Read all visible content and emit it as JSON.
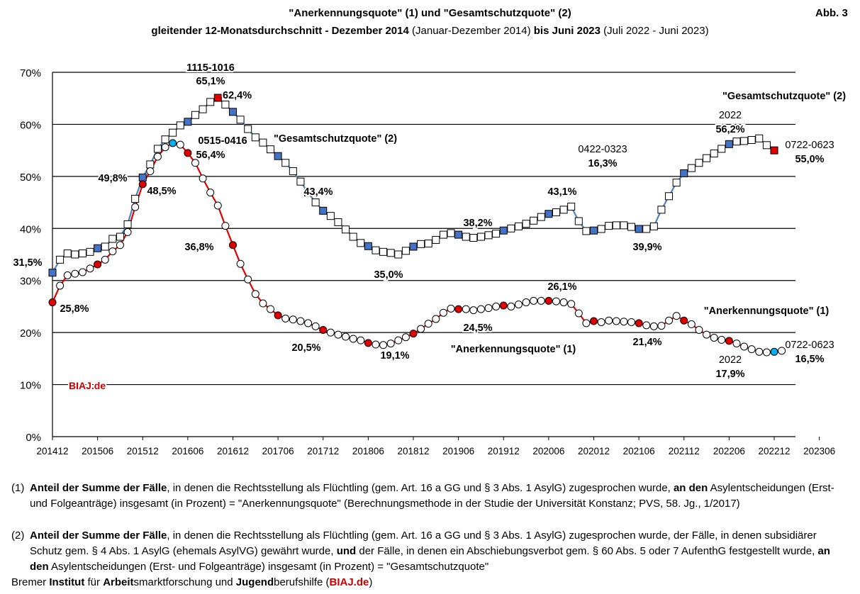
{
  "header": {
    "title_line1": "\"Anerkennungsquote\" (1) und \"Gesamtschutzquote\" (2)",
    "title_line2": {
      "a": "gleitender 12-Monatsdurchschnitt - Dezember 2014",
      "b": " (Januar-Dezember 2014) ",
      "c": "bis Juni 2023",
      "d": " (Juli 2022 - Juni 2023)"
    },
    "figure_label": "Abb. 3"
  },
  "chart_data": {
    "type": "line",
    "y_ticks": [
      "0%",
      "10%",
      "20%",
      "30%",
      "40%",
      "50%",
      "60%",
      "70%"
    ],
    "ylim": [
      0,
      70
    ],
    "x_ticks": [
      "201412",
      "201506",
      "201512",
      "201606",
      "201612",
      "201706",
      "201712",
      "201806",
      "201812",
      "201906",
      "201912",
      "202006",
      "202012",
      "202106",
      "202112",
      "202206",
      "202212",
      "202306"
    ],
    "series": [
      {
        "name": "\"Gesamtschutzquote\" (2)",
        "color": "#4f81bd",
        "highlight_color": "#4472c4",
        "end_color": "#e00000",
        "values": [
          31.5,
          34.0,
          35.2,
          35.0,
          35.2,
          35.5,
          36.2,
          36.5,
          38.0,
          38.4,
          40.8,
          45.7,
          49.8,
          52.3,
          55.3,
          57.1,
          58.4,
          59.8,
          60.5,
          61.8,
          62.9,
          64.3,
          65.1,
          63.8,
          62.4,
          60.9,
          59.1,
          57.5,
          56.5,
          55.2,
          53.9,
          52.6,
          51.0,
          49.0,
          46.9,
          45.0,
          43.4,
          42.4,
          41.2,
          39.8,
          38.4,
          37.2,
          36.6,
          35.8,
          35.5,
          35.3,
          35.0,
          35.7,
          36.5,
          37.0,
          37.1,
          37.8,
          38.8,
          39.1,
          38.8,
          38.4,
          38.2,
          38.4,
          38.7,
          39.0,
          39.6,
          40.0,
          40.4,
          40.9,
          41.5,
          42.2,
          42.8,
          43.1,
          43.6,
          44.2,
          41.4,
          39.5,
          39.6,
          39.9,
          40.5,
          40.6,
          40.6,
          40.3,
          39.9,
          39.9,
          40.4,
          43.6,
          46.2,
          48.8,
          50.6,
          51.6,
          52.6,
          53.5,
          54.4,
          55.3,
          56.2,
          56.7,
          56.8,
          57.0,
          57.3,
          56.0,
          55.0
        ]
      },
      {
        "name": "\"Anerkennungsquote\" (1)",
        "color": "#e00000",
        "highlight_color": "#e00000",
        "end_color": "#00b0f0",
        "values": [
          25.8,
          29.0,
          31.0,
          31.3,
          31.6,
          32.3,
          33.1,
          34.0,
          35.6,
          36.8,
          39.3,
          44.1,
          48.5,
          51.0,
          53.8,
          55.6,
          56.4,
          56.1,
          54.5,
          52.6,
          49.6,
          46.9,
          44.4,
          40.5,
          36.8,
          33.2,
          30.2,
          27.4,
          25.6,
          24.5,
          23.3,
          22.7,
          22.5,
          22.2,
          21.8,
          21.2,
          20.5,
          20.0,
          19.6,
          19.2,
          18.8,
          18.5,
          18.0,
          17.7,
          17.6,
          17.9,
          18.5,
          19.1,
          19.8,
          20.7,
          21.7,
          22.6,
          23.8,
          24.6,
          24.5,
          24.5,
          24.3,
          24.5,
          24.7,
          25.0,
          25.2,
          25.0,
          25.4,
          25.8,
          26.1,
          26.1,
          26.1,
          26.0,
          25.8,
          25.5,
          23.7,
          21.8,
          22.2,
          22.0,
          22.3,
          22.2,
          22.1,
          22.0,
          21.8,
          21.4,
          21.2,
          21.3,
          22.3,
          23.2,
          22.3,
          21.6,
          20.5,
          19.6,
          19.0,
          18.6,
          18.4,
          17.9,
          17.3,
          16.8,
          16.3,
          16.2,
          16.3,
          16.5
        ]
      }
    ],
    "annotations": {
      "peak_period": "1115-1016",
      "peak_value": "65,1%",
      "g_62_4": "62,4%",
      "a_period_0515": "0515-0416",
      "a_56_4": "56,4%",
      "g_series_label": "\"Gesamtschutzquote\" (2)",
      "g_49_8": "49,8%",
      "a_48_5": "48,5%",
      "g_31_5": "31,5%",
      "a_25_8": "25,8%",
      "a_36_8": "36,8%",
      "g_43_4": "43,4%",
      "g_38_2": "38,2%",
      "g_35_0": "35,0%",
      "a_20_5": "20,5%",
      "a_19_1": "19,1%",
      "a_24_5": "24,5%",
      "a_series_label_mid": "\"Anerkennungsquote\" (1)",
      "g_43_1": "43,1%",
      "a_26_1": "26,1%",
      "period_0422": "0422-0323",
      "a_16_3": "16,3%",
      "g_39_9": "39,9%",
      "a_21_4": "21,4%",
      "g_year_2022": "2022",
      "g_56_2": "56,2%",
      "g_series_label_right": "\"Gesamtschutzquote\" (2)",
      "g_period_0722": "0722-0623",
      "g_55_0": "55,0%",
      "a_series_label_right": "\"Anerkennungsquote\" (1)",
      "a_year_2022": "2022",
      "a_17_9": "17,9%",
      "a_period_0722": "0722-0623",
      "a_16_5": "16,5%",
      "watermark": "BIAJ.de"
    }
  },
  "footnotes": {
    "n1": {
      "num": "(1)",
      "b1": "Anteil der Summe der Fälle",
      "t1": ", in denen die Rechtsstellung als Flüchtling (gem. Art. 16 a GG und § 3 Abs. 1 AsylG) zugesprochen wurde, ",
      "b2": "an den",
      "t2": " Asylentscheidungen (Erst- und Folgeanträge) insgesamt (in Prozent) = \"Anerkennungsquote\" (Berechnungsmethode in der Studie der Universität Konstanz; PVS, 58. Jg., 1/2017)"
    },
    "n2": {
      "num": "(2)",
      "b1": "Anteil der Summe der Fälle",
      "t1": ", in denen die Rechtsstellung als Flüchtling (gem. Art. 16 a GG und § 3 Abs. 1 AsylG) zugesprochen wurde, der Fälle, in denen subsidiärer Schutz gem. § 4 Abs. 1 AsylG (ehemals AsylVG) gewährt wurde, ",
      "b2": "und",
      "t2": " der Fälle, in denen ein Abschiebungsverbot gem. § 60 Abs. 5 oder 7 AufenthG festgestellt wurde, ",
      "b3": "an den",
      "t3": " Asylentscheidungen (Erst- und Folgeanträge) insgesamt (in Prozent) = \"Gesamtschutzquote\""
    }
  },
  "source": {
    "p1": "Bremer ",
    "b1": "Institut",
    "p2": " für ",
    "b2": "Arbeit",
    "p3": "smarktforschung und ",
    "b3": "Jugend",
    "p4": "berufshilfe (",
    "b4": "BIAJ.de",
    "p5": ")"
  }
}
